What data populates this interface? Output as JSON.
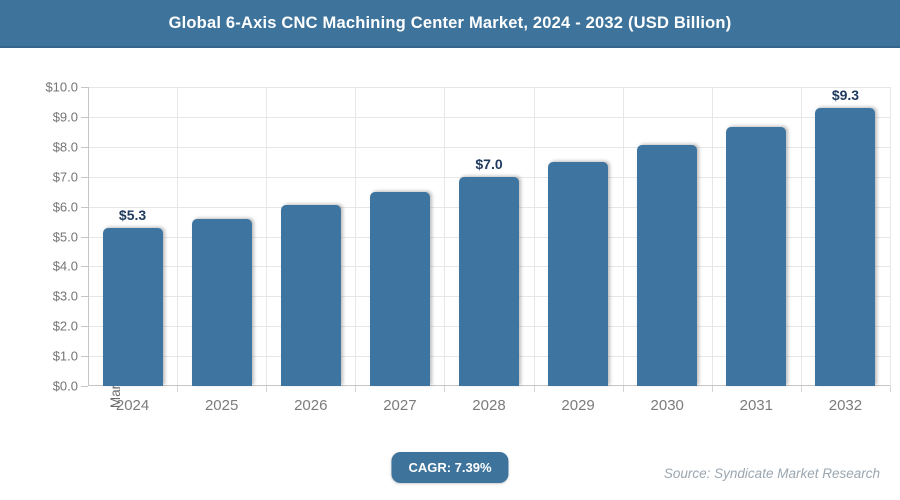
{
  "header": {
    "title": "Global 6-Axis CNC Machining Center Market, 2024 - 2032 (USD Billion)"
  },
  "chart_data": {
    "type": "bar",
    "title": "Global 6-Axis CNC Machining Center Market, 2024 - 2032 (USD Billion)",
    "ylabel": "Market Size (USD Billion)",
    "xlabel": "",
    "categories": [
      "2024",
      "2025",
      "2026",
      "2027",
      "2028",
      "2029",
      "2030",
      "2031",
      "2032"
    ],
    "values": [
      5.3,
      5.6,
      6.05,
      6.5,
      7.0,
      7.5,
      8.05,
      8.65,
      9.3
    ],
    "data_labels": [
      "$5.3",
      "",
      "",
      "",
      "$7.0",
      "",
      "",
      "",
      "$9.3"
    ],
    "ylim": [
      0,
      10
    ],
    "ytick_values": [
      0,
      1,
      2,
      3,
      4,
      5,
      6,
      7,
      8,
      9,
      10
    ],
    "ytick_labels": [
      "$0.0",
      "$1.0",
      "$2.0",
      "$3.0",
      "$4.0",
      "$5.0",
      "$6.0",
      "$7.0",
      "$8.0",
      "$9.0",
      "$10.0"
    ],
    "grid": true,
    "legend": false,
    "bar_color": "#3e75a0",
    "value_label_color": "#1e3a5e"
  },
  "footer": {
    "cagr_label": "CAGR: 7.39%",
    "source": "Source: Syndicate Market Research"
  },
  "colors": {
    "header_bg": "#3e749c",
    "badge_bg": "#3e749c",
    "grid": "#e7e7e7",
    "axis": "#c6c6c6",
    "tick_text": "#757575"
  }
}
